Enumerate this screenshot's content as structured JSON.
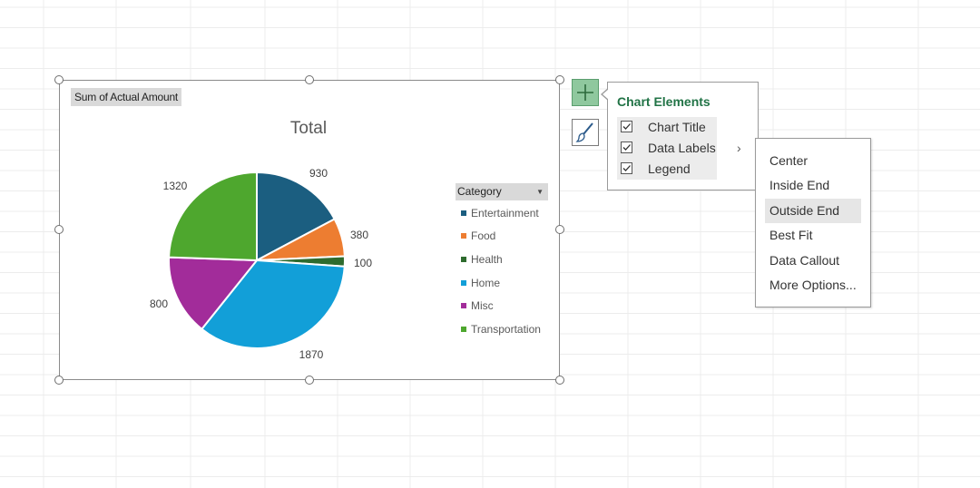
{
  "chart": {
    "field_button": "Sum of Actual Amount",
    "legend_header": "Category"
  },
  "chart_data": {
    "type": "pie",
    "title": "Total",
    "categories": [
      "Entertainment",
      "Food",
      "Health",
      "Home",
      "Misc",
      "Transportation"
    ],
    "values": [
      930,
      380,
      100,
      1870,
      800,
      1320
    ],
    "colors": [
      "#1b5e80",
      "#ed7d31",
      "#2e6b2e",
      "#129fd8",
      "#a22c9a",
      "#4ea72e"
    ],
    "data_labels": [
      "930",
      "380",
      "100",
      "1870",
      "800",
      "1320"
    ],
    "legend_position": "right"
  },
  "flyout": {
    "title": "Chart Elements",
    "options": [
      {
        "label": "Chart Title",
        "checked": true
      },
      {
        "label": "Data Labels",
        "checked": true
      },
      {
        "label": "Legend",
        "checked": true
      }
    ],
    "submenu_arrow": "›",
    "submenu": [
      "Center",
      "Inside End",
      "Outside End",
      "Best Fit",
      "Data Callout",
      "More Options..."
    ],
    "highlighted": "Outside End"
  },
  "icons": {
    "add": "plus-icon",
    "style": "paintbrush-icon",
    "check": "checkmark-icon"
  },
  "theme": {
    "accent": "#217346",
    "plus_button_bg": "#8fc89e"
  }
}
